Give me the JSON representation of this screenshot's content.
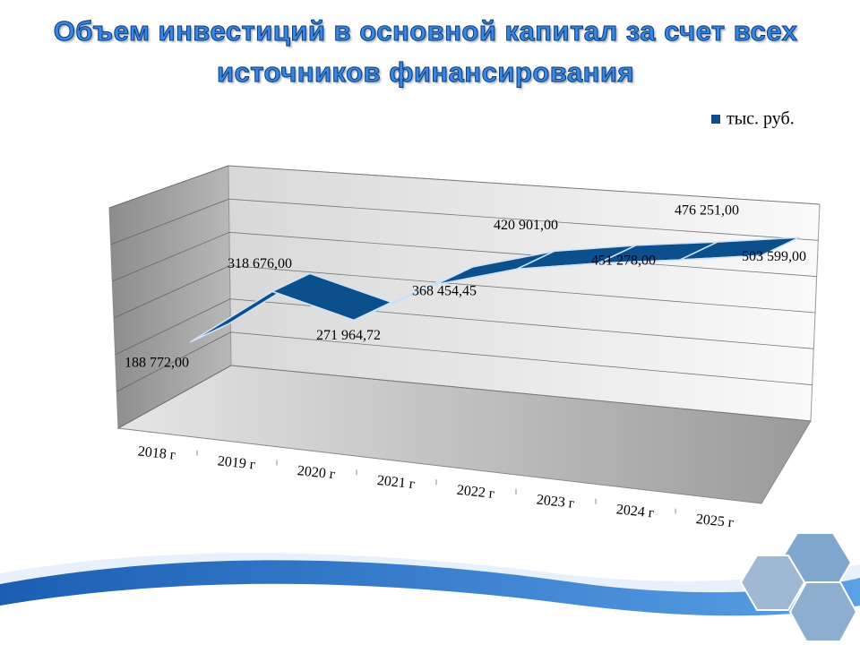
{
  "chart_data": {
    "type": "line3d",
    "title": "Объем инвестиций в основной капитал за счет всех источников финансирования",
    "categories": [
      "2018 г",
      "2019 г",
      "2020 г",
      "2021 г",
      "2022 г",
      "2023 г",
      "2024 г",
      "2025 г"
    ],
    "series": [
      {
        "name": "тыс. руб.",
        "color": "#0b4f8c",
        "values": [
          188772,
          318676,
          271964.72,
          368454.45,
          420901,
          451278,
          476251,
          503599
        ],
        "value_labels": [
          "188 772,00",
          "318 676,00",
          "271 964,72",
          "368 454,45",
          "420 901,00",
          "451 278,00",
          "476 251,00",
          "503 599,00"
        ]
      }
    ],
    "ylim": [
      0,
      600000
    ],
    "legend": "top-right"
  }
}
